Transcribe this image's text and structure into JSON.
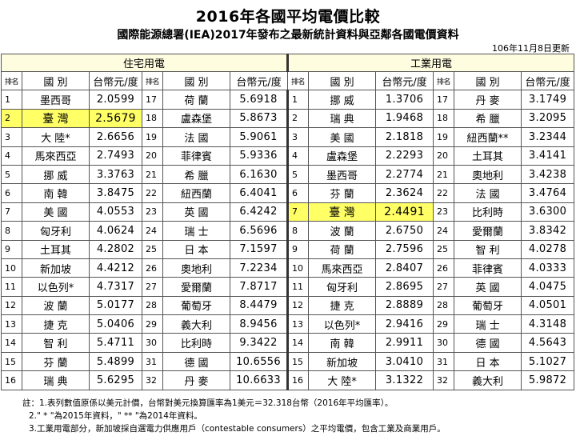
{
  "title": "2016年各國平均電價比較",
  "subtitle": "國際能源總署(IEA)2017年發布之最新統計資料與亞鄰各國電價資料",
  "update": "106年11月8日更新",
  "headers": {
    "residential": "住宅用電",
    "industrial": "工業用電",
    "rank": "排名",
    "country": "國  別",
    "price": "台幣元/度"
  },
  "highlight_color": "#ffff66",
  "residential": [
    {
      "rank": "1",
      "country": "墨西哥",
      "price": "2.0599"
    },
    {
      "rank": "2",
      "country": "臺 灣",
      "price": "2.5679"
    },
    {
      "rank": "3",
      "country": "大 陸*",
      "price": "2.6656"
    },
    {
      "rank": "4",
      "country": "馬來西亞",
      "price": "2.7493"
    },
    {
      "rank": "5",
      "country": "挪 威",
      "price": "3.3763"
    },
    {
      "rank": "6",
      "country": "南 韓",
      "price": "3.8475"
    },
    {
      "rank": "7",
      "country": "美 國",
      "price": "4.0553"
    },
    {
      "rank": "8",
      "country": "匈牙利",
      "price": "4.0624"
    },
    {
      "rank": "9",
      "country": "土耳其",
      "price": "4.2802"
    },
    {
      "rank": "10",
      "country": "新加坡",
      "price": "4.4212"
    },
    {
      "rank": "11",
      "country": "以色列*",
      "price": "4.7317"
    },
    {
      "rank": "12",
      "country": "波 蘭",
      "price": "5.0177"
    },
    {
      "rank": "13",
      "country": "捷 克",
      "price": "5.0406"
    },
    {
      "rank": "14",
      "country": "智 利",
      "price": "5.4711"
    },
    {
      "rank": "15",
      "country": "芬 蘭",
      "price": "5.4899"
    },
    {
      "rank": "16",
      "country": "瑞 典",
      "price": "5.6295"
    },
    {
      "rank": "17",
      "country": "荷 蘭",
      "price": "5.6918"
    },
    {
      "rank": "18",
      "country": "盧森堡",
      "price": "5.8673"
    },
    {
      "rank": "19",
      "country": "法 國",
      "price": "5.9061"
    },
    {
      "rank": "20",
      "country": "菲律賓",
      "price": "5.9336"
    },
    {
      "rank": "21",
      "country": "希 臘",
      "price": "6.1630"
    },
    {
      "rank": "22",
      "country": "紐西蘭",
      "price": "6.4041"
    },
    {
      "rank": "23",
      "country": "英 國",
      "price": "6.4242"
    },
    {
      "rank": "24",
      "country": "瑞 士",
      "price": "6.5696"
    },
    {
      "rank": "25",
      "country": "日 本",
      "price": "7.1597"
    },
    {
      "rank": "26",
      "country": "奧地利",
      "price": "7.2234"
    },
    {
      "rank": "27",
      "country": "愛爾蘭",
      "price": "7.8717"
    },
    {
      "rank": "28",
      "country": "葡萄牙",
      "price": "8.4479"
    },
    {
      "rank": "29",
      "country": "義大利",
      "price": "8.9456"
    },
    {
      "rank": "30",
      "country": "比利時",
      "price": "9.3422"
    },
    {
      "rank": "31",
      "country": "德 國",
      "price": "10.6556"
    },
    {
      "rank": "32",
      "country": "丹 麥",
      "price": "10.6633"
    }
  ],
  "industrial": [
    {
      "rank": "1",
      "country": "挪 威",
      "price": "1.3706"
    },
    {
      "rank": "2",
      "country": "瑞 典",
      "price": "1.9468"
    },
    {
      "rank": "3",
      "country": "美 國",
      "price": "2.1818"
    },
    {
      "rank": "4",
      "country": "盧森堡",
      "price": "2.2293"
    },
    {
      "rank": "5",
      "country": "墨西哥",
      "price": "2.2774"
    },
    {
      "rank": "6",
      "country": "芬 蘭",
      "price": "2.3624"
    },
    {
      "rank": "7",
      "country": "臺 灣",
      "price": "2.4491"
    },
    {
      "rank": "8",
      "country": "波 蘭",
      "price": "2.6750"
    },
    {
      "rank": "9",
      "country": "荷 蘭",
      "price": "2.7596"
    },
    {
      "rank": "10",
      "country": "馬來西亞",
      "price": "2.8407"
    },
    {
      "rank": "11",
      "country": "匈牙利",
      "price": "2.8695"
    },
    {
      "rank": "12",
      "country": "捷 克",
      "price": "2.8889"
    },
    {
      "rank": "13",
      "country": "以色列*",
      "price": "2.9416"
    },
    {
      "rank": "14",
      "country": "南 韓",
      "price": "2.9911"
    },
    {
      "rank": "15",
      "country": "新加坡",
      "price": "3.0410"
    },
    {
      "rank": "16",
      "country": "大 陸*",
      "price": "3.1322"
    },
    {
      "rank": "17",
      "country": "丹 麥",
      "price": "3.1749"
    },
    {
      "rank": "18",
      "country": "希 臘",
      "price": "3.2095"
    },
    {
      "rank": "19",
      "country": "紐西蘭**",
      "price": "3.2344"
    },
    {
      "rank": "20",
      "country": "土耳其",
      "price": "3.4141"
    },
    {
      "rank": "21",
      "country": "奧地利",
      "price": "3.4238"
    },
    {
      "rank": "22",
      "country": "法 國",
      "price": "3.4764"
    },
    {
      "rank": "23",
      "country": "比利時",
      "price": "3.6300"
    },
    {
      "rank": "24",
      "country": "愛爾蘭",
      "price": "3.8342"
    },
    {
      "rank": "25",
      "country": "智 利",
      "price": "4.0278"
    },
    {
      "rank": "26",
      "country": "菲律賓",
      "price": "4.0333"
    },
    {
      "rank": "27",
      "country": "英 國",
      "price": "4.0475"
    },
    {
      "rank": "28",
      "country": "葡萄牙",
      "price": "4.0501"
    },
    {
      "rank": "29",
      "country": "瑞 士",
      "price": "4.3148"
    },
    {
      "rank": "30",
      "country": "德 國",
      "price": "4.5643"
    },
    {
      "rank": "31",
      "country": "日 本",
      "price": "5.1027"
    },
    {
      "rank": "32",
      "country": "義大利",
      "price": "5.9872"
    }
  ],
  "notes": [
    "註：1.表列數值原係以美元計價，台幣對美元換算匯率為1美元＝32.318台幣（2016年平均匯率）。",
    "2.\" * \"為2015年資料，\" ** \"為2014年資料。",
    "3.工業用電部分，新加坡採自選電力供應用戶（contestable consumers）之平均電價，包含工業及商業用戶。"
  ]
}
